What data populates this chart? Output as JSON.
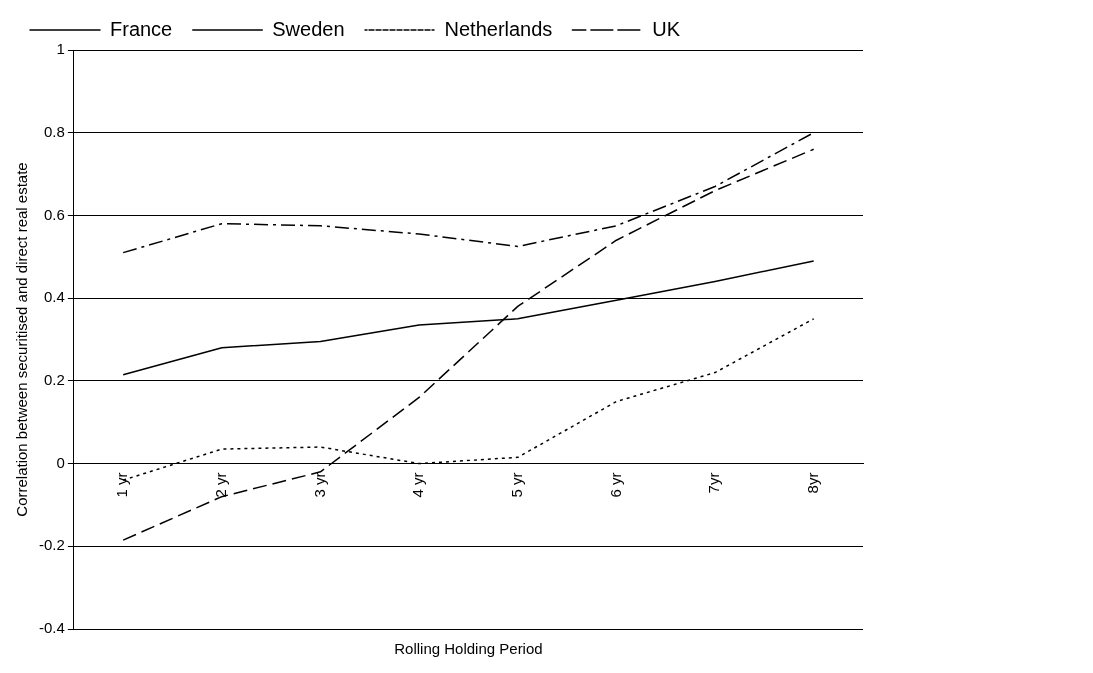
{
  "chart_data": {
    "type": "line",
    "xlabel": "Rolling Holding Period",
    "ylabel": "Correlation between securitised and direct real estate",
    "categories": [
      "1 yr",
      "2 yr",
      "3 yr",
      "4 yr",
      "5 yr",
      "6 yr",
      "7yr",
      "8yr"
    ],
    "series": [
      {
        "name": "France",
        "color": "#000000",
        "line_style": "solid",
        "values": [
          0.215,
          0.28,
          0.295,
          0.335,
          0.35,
          0.395,
          0.44,
          0.49
        ]
      },
      {
        "name": "Sweden",
        "color": "#000000",
        "line_style": "dashed",
        "values": [
          -0.185,
          -0.08,
          -0.02,
          0.16,
          0.38,
          0.54,
          0.66,
          0.76
        ]
      },
      {
        "name": "Netherlands",
        "color": "#000000",
        "line_style": "dotted",
        "values": [
          -0.04,
          0.035,
          0.04,
          0.0,
          0.015,
          0.15,
          0.22,
          0.35
        ]
      },
      {
        "name": "UK",
        "color": "#000000",
        "line_style": "dashdot",
        "values": [
          0.51,
          0.58,
          0.575,
          0.555,
          0.525,
          0.575,
          0.67,
          0.8
        ]
      }
    ],
    "ylim": [
      -0.4,
      1
    ],
    "yticks": [
      -0.4,
      -0.2,
      0,
      0.2,
      0.4,
      0.6,
      0.8,
      1
    ],
    "grid": "y",
    "legend": "top",
    "marker": "none"
  }
}
